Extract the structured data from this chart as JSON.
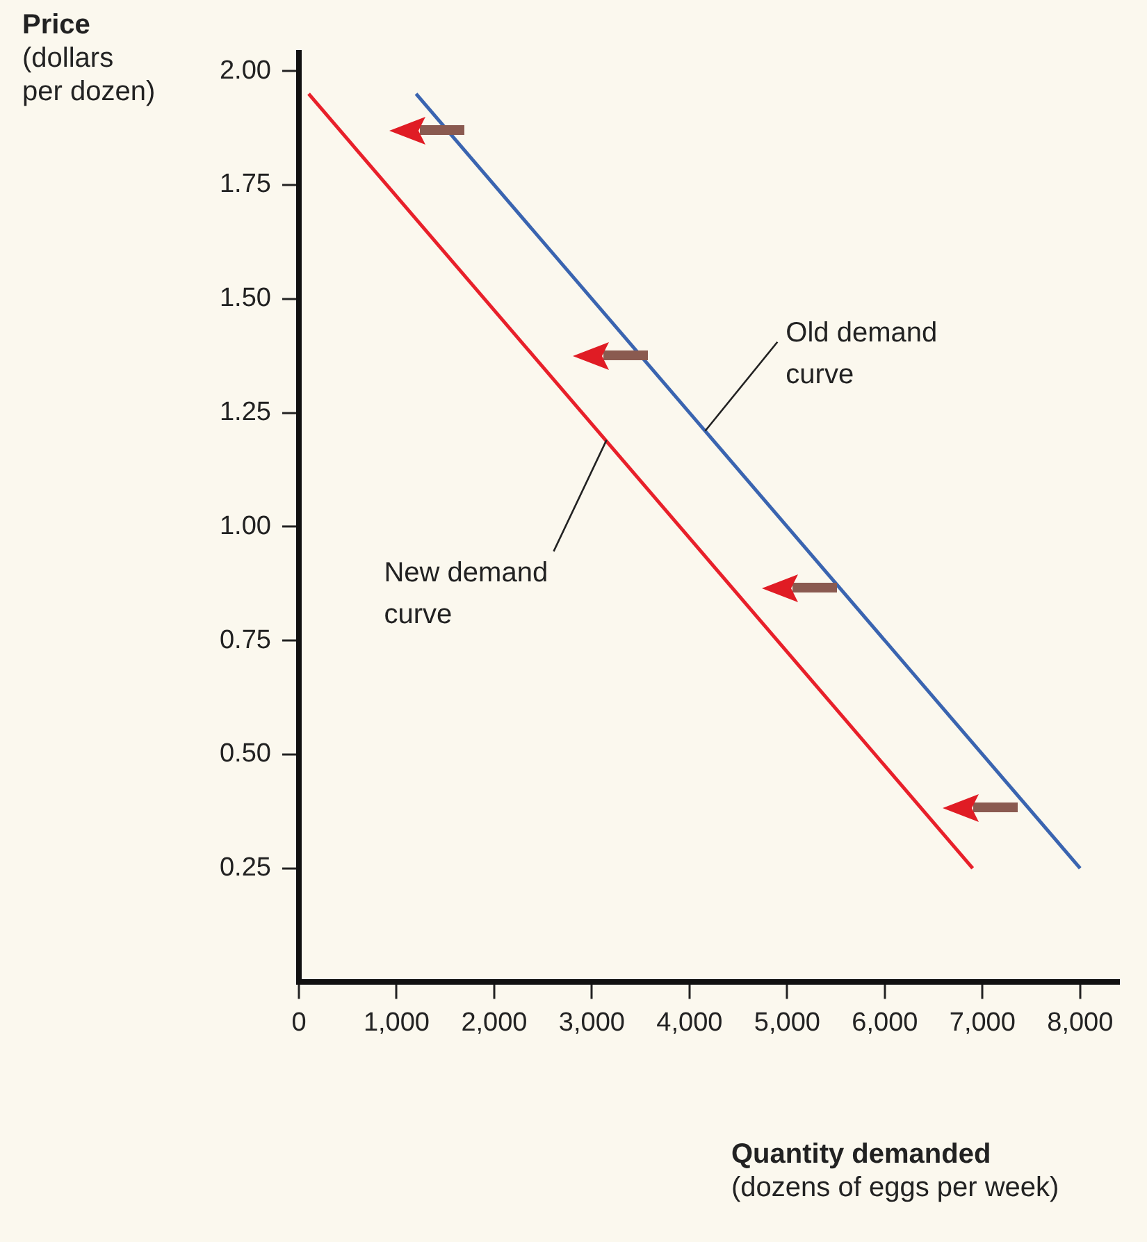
{
  "chart_data": {
    "type": "line",
    "xlabel": "Quantity demanded\n(dozens of eggs per week)",
    "ylabel": "Price\n(dollars\nper dozen)",
    "series": [
      {
        "color": "#3a64b0",
        "x": [
          1200,
          8000
        ],
        "values": [
          1.95,
          0.25
        ]
      },
      {
        "color": "#e8202a",
        "x": [
          100,
          6900
        ],
        "values": [
          1.95,
          0.25
        ]
      }
    ],
    "xlim": [
      0,
      8400
    ],
    "ylim": [
      0,
      2.04
    ],
    "xticks": [
      0,
      {
        "value": 1000,
        "label": "1,000"
      },
      {
        "value": 2000,
        "label": "2,000"
      },
      {
        "value": 3000,
        "label": "3,000"
      },
      {
        "value": 4000,
        "label": "4,000"
      },
      {
        "value": 5000,
        "label": "5,000"
      },
      {
        "value": 6000,
        "label": "6,000"
      },
      {
        "value": 7000,
        "label": "7,000"
      },
      {
        "value": 8000,
        "label": "8,000"
      }
    ],
    "yticks": [
      {
        "value": 0.25,
        "label": "0.25"
      },
      {
        "value": 0.5,
        "label": "0.50"
      },
      {
        "value": 0.75,
        "label": "0.75"
      },
      {
        "value": 1,
        "label": "1.00"
      },
      {
        "value": 1.25,
        "label": "1.25"
      },
      {
        "value": 1.5,
        "label": "1.50"
      },
      {
        "value": 1.75,
        "label": "1.75"
      },
      {
        "value": 2,
        "label": "2.00"
      }
    ],
    "annotations": [
      {
        "text": "Old demand\ncurve",
        "x": 4160,
        "y": 1.21
      },
      {
        "text": "New demand\ncurve",
        "x": 3150,
        "y": 1.19
      }
    ],
    "grid": false,
    "legend": false,
    "marker": "none",
    "line_style": "solid"
  }
}
